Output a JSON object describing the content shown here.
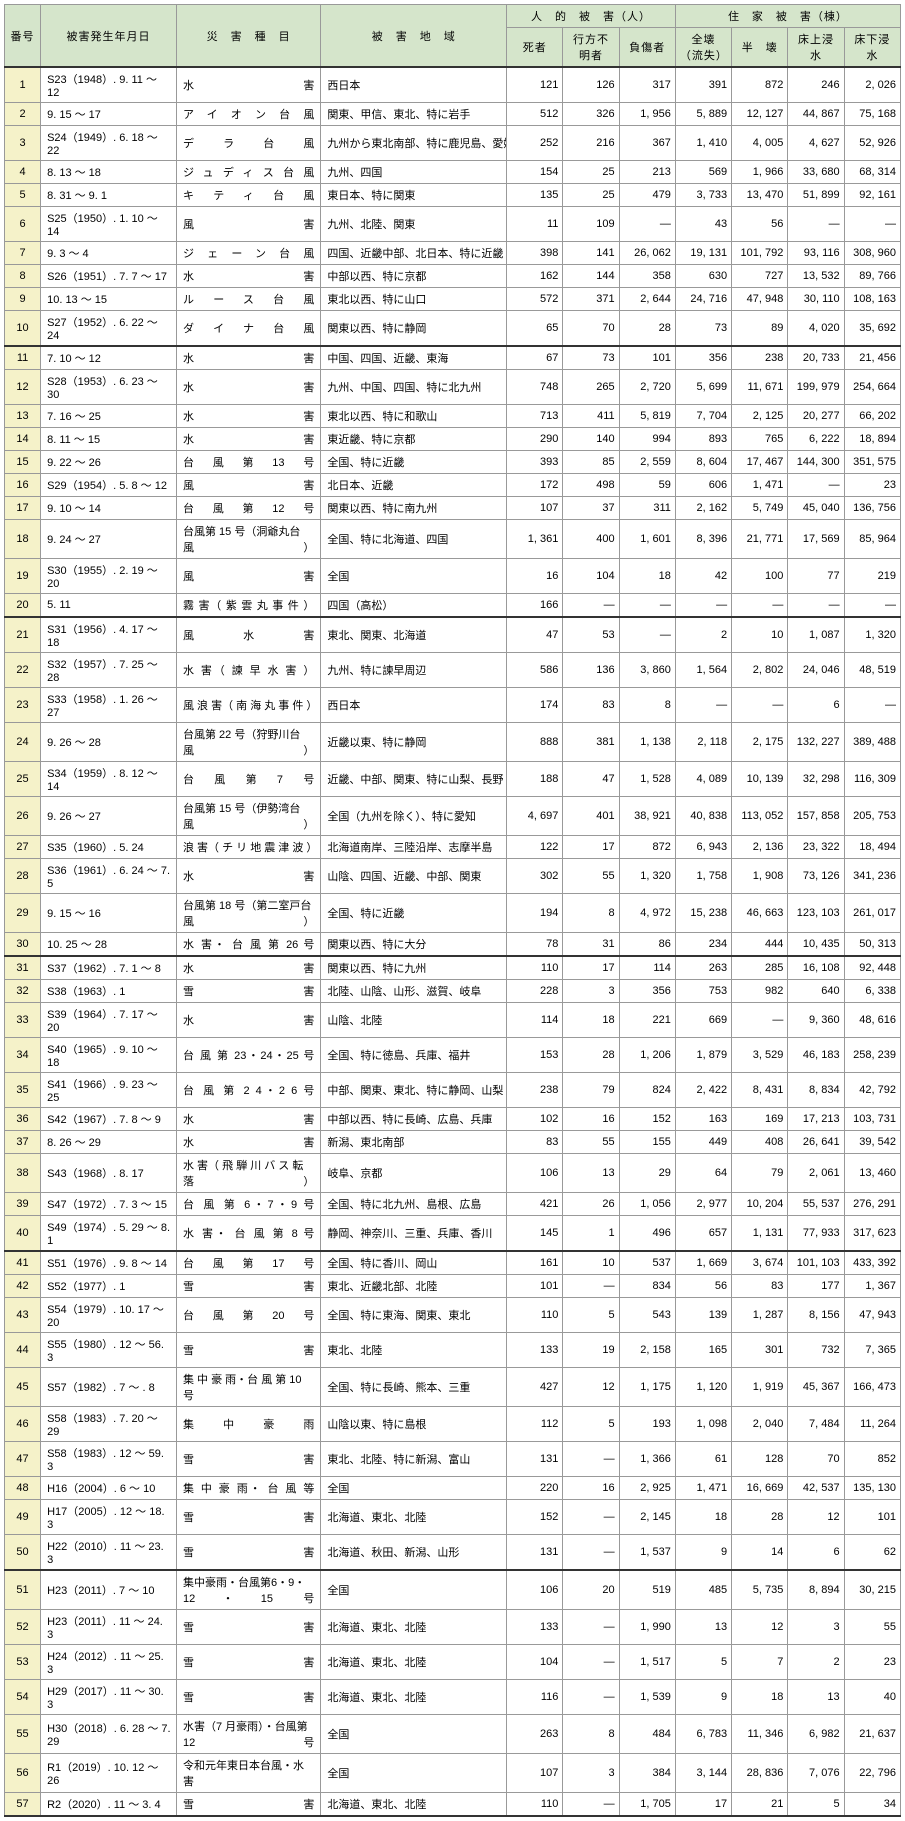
{
  "headers": {
    "num": "番号",
    "date": "被害発生年月日",
    "type": "災　害　種　目",
    "area": "被　害　地　域",
    "human_group": "人　的　被　害（人）",
    "house_group": "住　家　被　害（棟）",
    "dead": "死者",
    "missing": "行方不明者",
    "injured": "負傷者",
    "h1": "全壊（流失）",
    "h2": "半　壊",
    "h3": "床上浸水",
    "h4": "床下浸水"
  },
  "rows": [
    {
      "n": 1,
      "date": "S23（1948）. 9. 11 〜 12",
      "type": "水害",
      "area": "西日本",
      "d": "121",
      "m": "126",
      "i": "317",
      "h1": "391",
      "h2": "872",
      "h3": "246",
      "h4": "2, 026"
    },
    {
      "n": 2,
      "date": "9. 15 〜 17",
      "type": "アイオン台風",
      "area": "関東、甲信、東北、特に岩手",
      "d": "512",
      "m": "326",
      "i": "1, 956",
      "h1": "5, 889",
      "h2": "12, 127",
      "h3": "44, 867",
      "h4": "75, 168"
    },
    {
      "n": 3,
      "date": "S24（1949）. 6. 18 〜 22",
      "type": "デラ台風",
      "area": "九州から東北南部、特に鹿児島、愛媛",
      "d": "252",
      "m": "216",
      "i": "367",
      "h1": "1, 410",
      "h2": "4, 005",
      "h3": "4, 627",
      "h4": "52, 926"
    },
    {
      "n": 4,
      "date": "8. 13 〜 18",
      "type": "ジュディス台風",
      "area": "九州、四国",
      "d": "154",
      "m": "25",
      "i": "213",
      "h1": "569",
      "h2": "1, 966",
      "h3": "33, 680",
      "h4": "68, 314"
    },
    {
      "n": 5,
      "date": "8. 31 〜 9. 1",
      "type": "キティ台風",
      "area": "東日本、特に関東",
      "d": "135",
      "m": "25",
      "i": "479",
      "h1": "3, 733",
      "h2": "13, 470",
      "h3": "51, 899",
      "h4": "92, 161"
    },
    {
      "n": 6,
      "date": "S25（1950）. 1. 10 〜 14",
      "type": "風害",
      "area": "九州、北陸、関東",
      "d": "11",
      "m": "109",
      "i": "—",
      "h1": "43",
      "h2": "56",
      "h3": "—",
      "h4": "—"
    },
    {
      "n": 7,
      "date": "9. 3 〜 4",
      "type": "ジェーン台風",
      "area": "四国、近畿中部、北日本、特に近畿",
      "d": "398",
      "m": "141",
      "i": "26, 062",
      "h1": "19, 131",
      "h2": "101, 792",
      "h3": "93, 116",
      "h4": "308, 960"
    },
    {
      "n": 8,
      "date": "S26（1951）. 7. 7 〜 17",
      "type": "水害",
      "area": "中部以西、特に京都",
      "d": "162",
      "m": "144",
      "i": "358",
      "h1": "630",
      "h2": "727",
      "h3": "13, 532",
      "h4": "89, 766"
    },
    {
      "n": 9,
      "date": "10. 13 〜 15",
      "type": "ルース台風",
      "area": "東北以西、特に山口",
      "d": "572",
      "m": "371",
      "i": "2, 644",
      "h1": "24, 716",
      "h2": "47, 948",
      "h3": "30, 110",
      "h4": "108, 163"
    },
    {
      "n": 10,
      "date": "S27（1952）. 6. 22 〜 24",
      "type": "ダイナ台風",
      "area": "関東以西、特に静岡",
      "d": "65",
      "m": "70",
      "i": "28",
      "h1": "73",
      "h2": "89",
      "h3": "4, 020",
      "h4": "35, 692",
      "brk": true
    },
    {
      "n": 11,
      "date": "7. 10 〜 12",
      "type": "水害",
      "area": "中国、四国、近畿、東海",
      "d": "67",
      "m": "73",
      "i": "101",
      "h1": "356",
      "h2": "238",
      "h3": "20, 733",
      "h4": "21, 456"
    },
    {
      "n": 12,
      "date": "S28（1953）. 6. 23 〜 30",
      "type": "水害",
      "area": "九州、中国、四国、特に北九州",
      "d": "748",
      "m": "265",
      "i": "2, 720",
      "h1": "5, 699",
      "h2": "11, 671",
      "h3": "199, 979",
      "h4": "254, 664"
    },
    {
      "n": 13,
      "date": "7. 16 〜 25",
      "type": "水害",
      "area": "東北以西、特に和歌山",
      "d": "713",
      "m": "411",
      "i": "5, 819",
      "h1": "7, 704",
      "h2": "2, 125",
      "h3": "20, 277",
      "h4": "66, 202"
    },
    {
      "n": 14,
      "date": "8. 11 〜 15",
      "type": "水害",
      "area": "東近畿、特に京都",
      "d": "290",
      "m": "140",
      "i": "994",
      "h1": "893",
      "h2": "765",
      "h3": "6, 222",
      "h4": "18, 894"
    },
    {
      "n": 15,
      "date": "9. 22 〜 26",
      "type": "台風第13号",
      "area": "全国、特に近畿",
      "d": "393",
      "m": "85",
      "i": "2, 559",
      "h1": "8, 604",
      "h2": "17, 467",
      "h3": "144, 300",
      "h4": "351, 575"
    },
    {
      "n": 16,
      "date": "S29（1954）. 5. 8 〜 12",
      "type": "風害",
      "area": "北日本、近畿",
      "d": "172",
      "m": "498",
      "i": "59",
      "h1": "606",
      "h2": "1, 471",
      "h3": "—",
      "h4": "23"
    },
    {
      "n": 17,
      "date": "9. 10 〜 14",
      "type": "台風第12号",
      "area": "関東以西、特に南九州",
      "d": "107",
      "m": "37",
      "i": "311",
      "h1": "2, 162",
      "h2": "5, 749",
      "h3": "45, 040",
      "h4": "136, 756"
    },
    {
      "n": 18,
      "date": "9. 24 〜 27",
      "type": "台風第 15 号（洞爺丸台風）",
      "area": "全国、特に北海道、四国",
      "d": "1, 361",
      "m": "400",
      "i": "1, 601",
      "h1": "8, 396",
      "h2": "21, 771",
      "h3": "17, 569",
      "h4": "85, 964"
    },
    {
      "n": 19,
      "date": "S30（1955）. 2. 19 〜 20",
      "type": "風害",
      "area": "全国",
      "d": "16",
      "m": "104",
      "i": "18",
      "h1": "42",
      "h2": "100",
      "h3": "77",
      "h4": "219"
    },
    {
      "n": 20,
      "date": "5. 11",
      "type": "霧 害（ 紫 雲 丸 事 件 ）",
      "area": "四国（高松）",
      "d": "166",
      "m": "—",
      "i": "—",
      "h1": "—",
      "h2": "—",
      "h3": "—",
      "h4": "—",
      "brk": true
    },
    {
      "n": 21,
      "date": "S31（1956）. 4. 17 〜 18",
      "type": "風水害",
      "area": "東北、関東、北海道",
      "d": "47",
      "m": "53",
      "i": "—",
      "h1": "2",
      "h2": "10",
      "h3": "1, 087",
      "h4": "1, 320"
    },
    {
      "n": 22,
      "date": "S32（1957）. 7. 25 〜 28",
      "type": "水 害（ 諫 早 水 害 ）",
      "area": "九州、特に諫早周辺",
      "d": "586",
      "m": "136",
      "i": "3, 860",
      "h1": "1, 564",
      "h2": "2, 802",
      "h3": "24, 046",
      "h4": "48, 519"
    },
    {
      "n": 23,
      "date": "S33（1958）. 1. 26 〜 27",
      "type": "風 浪 害（ 南 海 丸 事 件 ）",
      "area": "西日本",
      "d": "174",
      "m": "83",
      "i": "8",
      "h1": "—",
      "h2": "—",
      "h3": "6",
      "h4": "—"
    },
    {
      "n": 24,
      "date": "9. 26 〜 28",
      "type": "台風第 22 号（狩野川台風）",
      "area": "近畿以東、特に静岡",
      "d": "888",
      "m": "381",
      "i": "1, 138",
      "h1": "2, 118",
      "h2": "2, 175",
      "h3": "132, 227",
      "h4": "389, 488"
    },
    {
      "n": 25,
      "date": "S34（1959）. 8. 12 〜 14",
      "type": "台風第7号",
      "area": "近畿、中部、関東、特に山梨、長野",
      "d": "188",
      "m": "47",
      "i": "1, 528",
      "h1": "4, 089",
      "h2": "10, 139",
      "h3": "32, 298",
      "h4": "116, 309"
    },
    {
      "n": 26,
      "date": "9. 26 〜 27",
      "type": "台風第 15 号（伊勢湾台風）",
      "area": "全国（九州を除く）、特に愛知",
      "d": "4, 697",
      "m": "401",
      "i": "38, 921",
      "h1": "40, 838",
      "h2": "113, 052",
      "h3": "157, 858",
      "h4": "205, 753"
    },
    {
      "n": 27,
      "date": "S35（1960）. 5. 24",
      "type": "浪 害（ チ リ 地 震 津 波 ）",
      "area": "北海道南岸、三陸沿岸、志摩半島",
      "d": "122",
      "m": "17",
      "i": "872",
      "h1": "6, 943",
      "h2": "2, 136",
      "h3": "23, 322",
      "h4": "18, 494"
    },
    {
      "n": 28,
      "date": "S36（1961）. 6. 24 〜 7. 5",
      "type": "水害",
      "area": "山陰、四国、近畿、中部、関東",
      "d": "302",
      "m": "55",
      "i": "1, 320",
      "h1": "1, 758",
      "h2": "1, 908",
      "h3": "73, 126",
      "h4": "341, 236"
    },
    {
      "n": 29,
      "date": "9. 15 〜 16",
      "type": "台風第 18 号（第二室戸台風）",
      "area": "全国、特に近畿",
      "d": "194",
      "m": "8",
      "i": "4, 972",
      "h1": "15, 238",
      "h2": "46, 663",
      "h3": "123, 103",
      "h4": "261, 017"
    },
    {
      "n": 30,
      "date": "10. 25 〜 28",
      "type": "水 害・ 台 風 第 26 号",
      "area": "関東以西、特に大分",
      "d": "78",
      "m": "31",
      "i": "86",
      "h1": "234",
      "h2": "444",
      "h3": "10, 435",
      "h4": "50, 313",
      "brk": true
    },
    {
      "n": 31,
      "date": "S37（1962）. 7. 1 〜 8",
      "type": "水害",
      "area": "関東以西、特に九州",
      "d": "110",
      "m": "17",
      "i": "114",
      "h1": "263",
      "h2": "285",
      "h3": "16, 108",
      "h4": "92, 448"
    },
    {
      "n": 32,
      "date": "S38（1963）. 1",
      "type": "雪害",
      "area": "北陸、山陰、山形、滋賀、岐阜",
      "d": "228",
      "m": "3",
      "i": "356",
      "h1": "753",
      "h2": "982",
      "h3": "640",
      "h4": "6, 338"
    },
    {
      "n": 33,
      "date": "S39（1964）. 7. 17 〜 20",
      "type": "水害",
      "area": "山陰、北陸",
      "d": "114",
      "m": "18",
      "i": "221",
      "h1": "669",
      "h2": "—",
      "h3": "9, 360",
      "h4": "48, 616"
    },
    {
      "n": 34,
      "date": "S40（1965）. 9. 10 〜 18",
      "type": "台 風 第 23・24・25 号",
      "area": "全国、特に徳島、兵庫、福井",
      "d": "153",
      "m": "28",
      "i": "1, 206",
      "h1": "1, 879",
      "h2": "3, 529",
      "h3": "46, 183",
      "h4": "258, 239"
    },
    {
      "n": 35,
      "date": "S41（1966）. 9. 23 〜 25",
      "type": "台 風 第 2 4・2 6 号",
      "area": "中部、関東、東北、特に静岡、山梨",
      "d": "238",
      "m": "79",
      "i": "824",
      "h1": "2, 422",
      "h2": "8, 431",
      "h3": "8, 834",
      "h4": "42, 792"
    },
    {
      "n": 36,
      "date": "S42（1967）. 7. 8 〜 9",
      "type": "水害",
      "area": "中部以西、特に長崎、広島、兵庫",
      "d": "102",
      "m": "16",
      "i": "152",
      "h1": "163",
      "h2": "169",
      "h3": "17, 213",
      "h4": "103, 731"
    },
    {
      "n": 37,
      "date": "8. 26 〜 29",
      "type": "水害",
      "area": "新潟、東北南部",
      "d": "83",
      "m": "55",
      "i": "155",
      "h1": "449",
      "h2": "408",
      "h3": "26, 641",
      "h4": "39, 542"
    },
    {
      "n": 38,
      "date": "S43（1968）. 8. 17",
      "type": "水 害（ 飛 騨 川 バ ス 転 落 ）",
      "area": "岐阜、京都",
      "d": "106",
      "m": "13",
      "i": "29",
      "h1": "64",
      "h2": "79",
      "h3": "2, 061",
      "h4": "13, 460"
    },
    {
      "n": 39,
      "date": "S47（1972）. 7. 3 〜 15",
      "type": "台 風 第 6・7・9 号",
      "area": "全国、特に北九州、島根、広島",
      "d": "421",
      "m": "26",
      "i": "1, 056",
      "h1": "2, 977",
      "h2": "10, 204",
      "h3": "55, 537",
      "h4": "276, 291"
    },
    {
      "n": 40,
      "date": "S49（1974）. 5. 29 〜 8. 1",
      "type": "水 害・ 台 風 第 8 号",
      "area": "静岡、神奈川、三重、兵庫、香川",
      "d": "145",
      "m": "1",
      "i": "496",
      "h1": "657",
      "h2": "1, 131",
      "h3": "77, 933",
      "h4": "317, 623",
      "brk": true
    },
    {
      "n": 41,
      "date": "S51（1976）. 9. 8 〜 14",
      "type": "台風第17号",
      "area": "全国、特に香川、岡山",
      "d": "161",
      "m": "10",
      "i": "537",
      "h1": "1, 669",
      "h2": "3, 674",
      "h3": "101, 103",
      "h4": "433, 392"
    },
    {
      "n": 42,
      "date": "S52（1977）. 1",
      "type": "雪害",
      "area": "東北、近畿北部、北陸",
      "d": "101",
      "m": "—",
      "i": "834",
      "h1": "56",
      "h2": "83",
      "h3": "177",
      "h4": "1, 367"
    },
    {
      "n": 43,
      "date": "S54（1979）. 10. 17 〜 20",
      "type": "台風第20号",
      "area": "全国、特に東海、関東、東北",
      "d": "110",
      "m": "5",
      "i": "543",
      "h1": "139",
      "h2": "1, 287",
      "h3": "8, 156",
      "h4": "47, 943"
    },
    {
      "n": 44,
      "date": "S55（1980）. 12 〜 56. 3",
      "type": "雪害",
      "area": "東北、北陸",
      "d": "133",
      "m": "19",
      "i": "2, 158",
      "h1": "165",
      "h2": "301",
      "h3": "732",
      "h4": "7, 365"
    },
    {
      "n": 45,
      "date": "S57（1982）. 7 〜 . 8",
      "type": "集 中 豪 雨・台 風 第 10 号",
      "area": "全国、特に長崎、熊本、三重",
      "d": "427",
      "m": "12",
      "i": "1, 175",
      "h1": "1, 120",
      "h2": "1, 919",
      "h3": "45, 367",
      "h4": "166, 473"
    },
    {
      "n": 46,
      "date": "S58（1983）. 7. 20 〜 29",
      "type": "集中豪雨",
      "area": "山陰以東、特に島根",
      "d": "112",
      "m": "5",
      "i": "193",
      "h1": "1, 098",
      "h2": "2, 040",
      "h3": "7, 484",
      "h4": "11, 264"
    },
    {
      "n": 47,
      "date": "S58（1983）. 12 〜 59. 3",
      "type": "雪害",
      "area": "東北、北陸、特に新潟、富山",
      "d": "131",
      "m": "—",
      "i": "1, 366",
      "h1": "61",
      "h2": "128",
      "h3": "70",
      "h4": "852"
    },
    {
      "n": 48,
      "date": "H16（2004）. 6 〜 10",
      "type": "集 中 豪 雨・ 台 風 等",
      "area": "全国",
      "d": "220",
      "m": "16",
      "i": "2, 925",
      "h1": "1, 471",
      "h2": "16, 669",
      "h3": "42, 537",
      "h4": "135, 130"
    },
    {
      "n": 49,
      "date": "H17（2005）. 12 〜 18. 3",
      "type": "雪害",
      "area": "北海道、東北、北陸",
      "d": "152",
      "m": "—",
      "i": "2, 145",
      "h1": "18",
      "h2": "28",
      "h3": "12",
      "h4": "101"
    },
    {
      "n": 50,
      "date": "H22（2010）. 11 〜 23. 3",
      "type": "雪害",
      "area": "北海道、秋田、新潟、山形",
      "d": "131",
      "m": "—",
      "i": "1, 537",
      "h1": "9",
      "h2": "14",
      "h3": "6",
      "h4": "62",
      "brk": true
    },
    {
      "n": 51,
      "date": "H23（2011）. 7 〜 10",
      "type": "集中豪雨・台風第6・9・12・15 号",
      "area": "全国",
      "d": "106",
      "m": "20",
      "i": "519",
      "h1": "485",
      "h2": "5, 735",
      "h3": "8, 894",
      "h4": "30, 215"
    },
    {
      "n": 52,
      "date": "H23（2011）. 11 〜 24. 3",
      "type": "雪害",
      "area": "北海道、東北、北陸",
      "d": "133",
      "m": "—",
      "i": "1, 990",
      "h1": "13",
      "h2": "12",
      "h3": "3",
      "h4": "55"
    },
    {
      "n": 53,
      "date": "H24（2012）. 11 〜 25. 3",
      "type": "雪害",
      "area": "北海道、東北、北陸",
      "d": "104",
      "m": "—",
      "i": "1, 517",
      "h1": "5",
      "h2": "7",
      "h3": "2",
      "h4": "23"
    },
    {
      "n": 54,
      "date": "H29（2017）. 11 〜 30. 3",
      "type": "雪害",
      "area": "北海道、東北、北陸",
      "d": "116",
      "m": "—",
      "i": "1, 539",
      "h1": "9",
      "h2": "18",
      "h3": "13",
      "h4": "40"
    },
    {
      "n": 55,
      "date": "H30（2018）. 6. 28 〜 7. 29",
      "type": "水害（7 月豪雨）・台風第 12 号",
      "area": "全国",
      "d": "263",
      "m": "8",
      "i": "484",
      "h1": "6, 783",
      "h2": "11, 346",
      "h3": "6, 982",
      "h4": "21, 637"
    },
    {
      "n": 56,
      "date": "R1（2019）. 10. 12 〜 26",
      "type": "令和元年東日本台風・水害",
      "area": "全国",
      "d": "107",
      "m": "3",
      "i": "384",
      "h1": "3, 144",
      "h2": "28, 836",
      "h3": "7, 076",
      "h4": "22, 796"
    },
    {
      "n": 57,
      "date": "R2（2020）. 11 〜 3. 4",
      "type": "雪害",
      "area": "北海道、東北、北陸",
      "d": "110",
      "m": "—",
      "i": "1, 705",
      "h1": "17",
      "h2": "21",
      "h3": "5",
      "h4": "34",
      "brk": true
    }
  ]
}
